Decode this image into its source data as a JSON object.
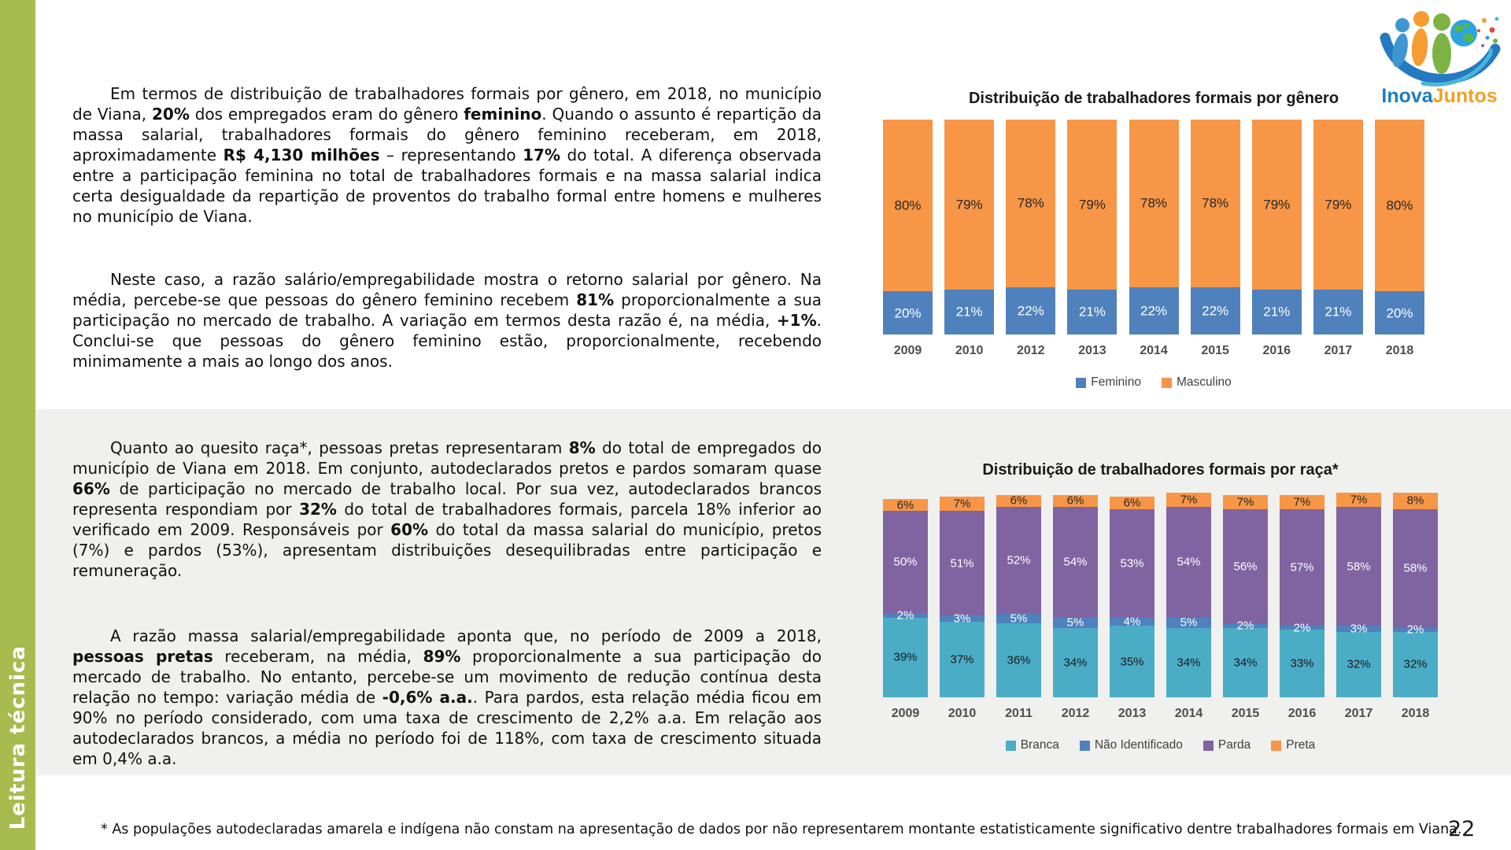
{
  "sidebar": {
    "label": "Leitura técnica",
    "color": "#a8bb4f"
  },
  "logo": {
    "text_primary": "Inova",
    "text_secondary": "Juntos"
  },
  "page_number": "22",
  "footnote": "* As populações autodeclaradas amarela e indígena não constam na apresentação de dados por não representarem montante estatisticamente significativo dentre trabalhadores formais em Viana.",
  "paragraphs": [
    {
      "segments": [
        {
          "text": "Em termos de distribuição de trabalhadores formais por gênero, em 2018, no município de Viana, "
        },
        {
          "text": "20%",
          "bold": true
        },
        {
          "text": " dos empregados eram do gênero "
        },
        {
          "text": "feminino",
          "bold": true
        },
        {
          "text": ". Quando o assunto é repartição da massa salarial, trabalhadores formais do gênero feminino receberam, em 2018, aproximadamente "
        },
        {
          "text": "R$ 4,130 milhões",
          "bold": true
        },
        {
          "text": " – representando "
        },
        {
          "text": "17%",
          "bold": true
        },
        {
          "text": " do total. A diferença observada entre a participação feminina no total de trabalhadores formais e na massa salarial indica certa desigualdade da repartição de proventos do trabalho formal entre homens e mulheres no município de Viana."
        }
      ]
    },
    {
      "segments": [
        {
          "text": "Neste caso, a razão salário/empregabilidade mostra o retorno salarial por gênero. Na média, percebe-se que pessoas do gênero feminino recebem "
        },
        {
          "text": "81%",
          "bold": true
        },
        {
          "text": " proporcionalmente a sua participação no mercado de trabalho. A variação em termos desta razão é, na média, "
        },
        {
          "text": "+1%",
          "bold": true
        },
        {
          "text": ". Conclui-se que pessoas do gênero feminino estão, proporcionalmente, recebendo minimamente a mais ao longo dos anos."
        }
      ]
    },
    {
      "segments": [
        {
          "text": "Quanto ao quesito raça*, pessoas pretas representaram "
        },
        {
          "text": "8%",
          "bold": true
        },
        {
          "text": " do total de empregados do município de Viana em 2018. Em conjunto, autodeclarados pretos e pardos somaram quase "
        },
        {
          "text": "66%",
          "bold": true
        },
        {
          "text": " de participação no mercado de trabalho local. Por sua vez, autodeclarados brancos representa respondiam por "
        },
        {
          "text": "32%",
          "bold": true
        },
        {
          "text": " do total de trabalhadores formais, parcela 18% inferior ao verificado em 2009. Responsáveis por "
        },
        {
          "text": "60%",
          "bold": true
        },
        {
          "text": " do total da massa salarial do município, pretos (7%) e pardos (53%), apresentam distribuições desequilibradas entre participação e remuneração."
        }
      ]
    },
    {
      "segments": [
        {
          "text": "A razão massa salarial/empregabilidade aponta que, no período de 2009 a 2018, "
        },
        {
          "text": "pessoas pretas",
          "bold": true
        },
        {
          "text": " receberam, na média, "
        },
        {
          "text": "89%",
          "bold": true
        },
        {
          "text": " proporcionalmente a sua participação do mercado de trabalho. No entanto, percebe-se um movimento de redução contínua desta relação no tempo: variação média de "
        },
        {
          "text": "-0,6% a.a.",
          "bold": true
        },
        {
          "text": ". Para pardos, esta relação média ficou em 90% no período considerado, com uma taxa de crescimento de 2,2% a.a. Em relação aos autodeclarados brancos, a média no período foi de 118%, com taxa de crescimento situada em 0,4% a.a."
        }
      ]
    }
  ],
  "chart_data": [
    {
      "type": "bar",
      "stacked": true,
      "unit": "%",
      "title": "Distribuição de trabalhadores formais por gênero",
      "categories": [
        "2009",
        "2010",
        "2012",
        "2013",
        "2014",
        "2015",
        "2016",
        "2017",
        "2018"
      ],
      "series": [
        {
          "name": "Feminino",
          "color": "#4F81BD",
          "label_color": "#ffffff",
          "values": [
            20,
            21,
            22,
            21,
            22,
            22,
            21,
            21,
            20
          ]
        },
        {
          "name": "Masculino",
          "color": "#F79646",
          "label_color": "#262626",
          "values": [
            80,
            79,
            78,
            79,
            78,
            78,
            79,
            79,
            80
          ]
        }
      ],
      "ylim": [
        0,
        100
      ],
      "grid": false,
      "legend_position": "bottom"
    },
    {
      "type": "bar",
      "stacked": true,
      "unit": "%",
      "title": "Distribuição de trabalhadores formais por raça*",
      "categories": [
        "2009",
        "2010",
        "2011",
        "2012",
        "2013",
        "2014",
        "2015",
        "2016",
        "2017",
        "2018"
      ],
      "series": [
        {
          "name": "Branca",
          "color": "#4BACC6",
          "label_color": "#1a1a1a",
          "values": [
            39,
            37,
            36,
            34,
            35,
            34,
            34,
            33,
            32,
            32
          ]
        },
        {
          "name": "Não Identificado",
          "color": "#4F81BD",
          "label_color": "#ffffff",
          "values": [
            2,
            3,
            5,
            5,
            4,
            5,
            2,
            2,
            3,
            2
          ]
        },
        {
          "name": "Parda",
          "color": "#8064A2",
          "label_color": "#ffffff",
          "values": [
            50,
            51,
            52,
            54,
            53,
            54,
            56,
            57,
            58,
            58
          ]
        },
        {
          "name": "Preta",
          "color": "#F79646",
          "label_color": "#262626",
          "values": [
            6,
            7,
            6,
            6,
            6,
            7,
            7,
            7,
            7,
            8
          ]
        }
      ],
      "ylim": [
        0,
        100
      ],
      "grid": false,
      "legend_position": "bottom"
    }
  ]
}
